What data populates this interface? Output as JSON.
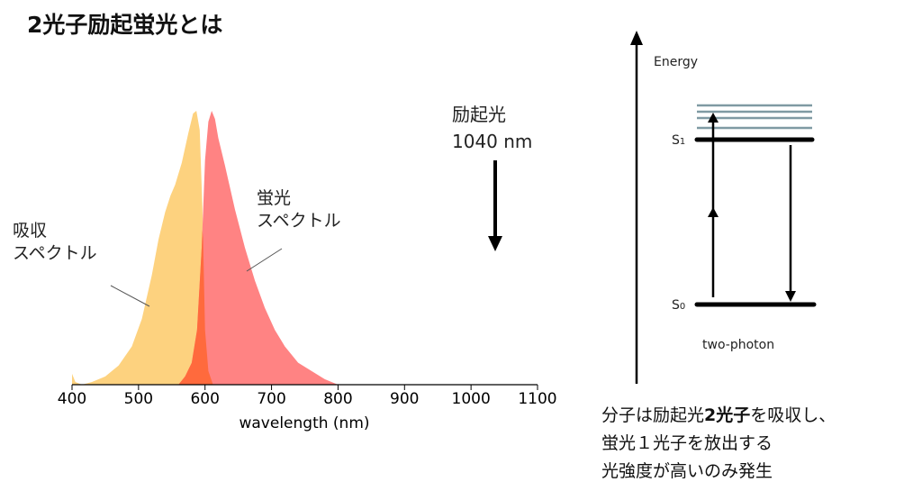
{
  "title": "2光子励起蛍光とは",
  "chart_data": {
    "type": "area",
    "xlabel": "wavelength (nm)",
    "ylabel": "",
    "xlim": [
      400,
      1100
    ],
    "ylim": [
      0,
      1
    ],
    "xticks": [
      "400",
      "500",
      "600",
      "700",
      "800",
      "900",
      "1000",
      "1100"
    ],
    "grid": false,
    "series": [
      {
        "name": "吸収スペクトル",
        "color": "#FDD27F",
        "x": [
          400,
          405,
          415,
          430,
          450,
          470,
          490,
          505,
          520,
          530,
          540,
          548,
          555,
          565,
          575,
          582,
          587,
          592,
          596,
          600,
          605,
          612
        ],
        "y": [
          0.04,
          0.01,
          0.0,
          0.01,
          0.03,
          0.07,
          0.14,
          0.24,
          0.4,
          0.53,
          0.63,
          0.69,
          0.73,
          0.81,
          0.92,
          0.99,
          1.0,
          0.93,
          0.65,
          0.2,
          0.05,
          0.0
        ]
      },
      {
        "name": "蛍光スペクトル",
        "color": "#FF8383",
        "x": [
          560,
          570,
          580,
          588,
          595,
          600,
          605,
          610,
          615,
          620,
          630,
          645,
          660,
          675,
          690,
          705,
          720,
          740,
          760,
          780,
          800
        ],
        "y": [
          0.0,
          0.03,
          0.08,
          0.2,
          0.5,
          0.82,
          0.96,
          1.0,
          0.97,
          0.9,
          0.8,
          0.64,
          0.5,
          0.38,
          0.28,
          0.2,
          0.14,
          0.08,
          0.05,
          0.02,
          0.0
        ]
      }
    ],
    "overlap_color": "#FF6A3D",
    "annotations": {
      "absorption": [
        "吸収",
        "スペクトル"
      ],
      "emission": [
        "蛍光",
        "スペクトル"
      ]
    },
    "excitation": {
      "label": "励起光",
      "wavelength": "1040 nm"
    }
  },
  "diagram": {
    "axis_label": "Energy",
    "s1": "S",
    "s1_sub": "1",
    "s0": "S",
    "s0_sub": "0",
    "caption": "two-photon"
  },
  "caption": {
    "line1_pre": "分子は励起光",
    "line1_bold": "2光子",
    "line1_post": "を吸収し、",
    "line2": "蛍光１光子を放出する",
    "line3": "光強度が高いのみ発生"
  }
}
